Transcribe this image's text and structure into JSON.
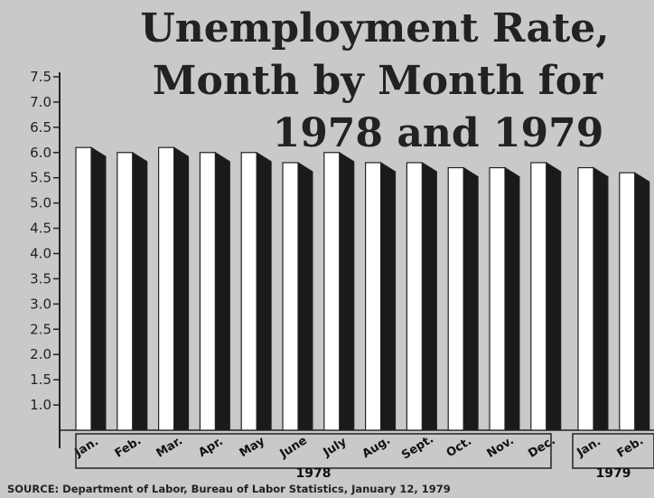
{
  "chart_data": {
    "type": "bar",
    "title_lines": [
      "Unemployment Rate,",
      "Month by Month for",
      "1978 and 1979"
    ],
    "xlabel": "",
    "ylabel": "",
    "ylim": [
      0.5,
      7.5
    ],
    "yticks": [
      "7.5",
      "7.0",
      "6.5",
      "6.0",
      "5.5",
      "5.0",
      "4.5",
      "4.0",
      "3.5",
      "3.0",
      "2.5",
      "2.0",
      "1.5",
      "1.0"
    ],
    "grid": false,
    "legend": "none",
    "groups": [
      {
        "year": "1978",
        "categories": [
          "Jan.",
          "Feb.",
          "Mar.",
          "Apr.",
          "May",
          "June",
          "July",
          "Aug.",
          "Sept.",
          "Oct.",
          "Nov.",
          "Dec."
        ],
        "values": [
          6.1,
          6.0,
          6.1,
          6.0,
          6.0,
          5.8,
          6.0,
          5.8,
          5.8,
          5.7,
          5.7,
          5.8
        ]
      },
      {
        "year": "1979",
        "categories": [
          "Jan.",
          "Feb."
        ],
        "values": [
          5.7,
          5.6
        ]
      }
    ],
    "source": "SOURCE: Department of Labor, Bureau of Labor Statistics, January 12, 1979",
    "colors": {
      "background": "#c9c9c9",
      "bar_face": "#ffffff",
      "bar_side": "#1a1a1a",
      "ink": "#222222"
    }
  }
}
